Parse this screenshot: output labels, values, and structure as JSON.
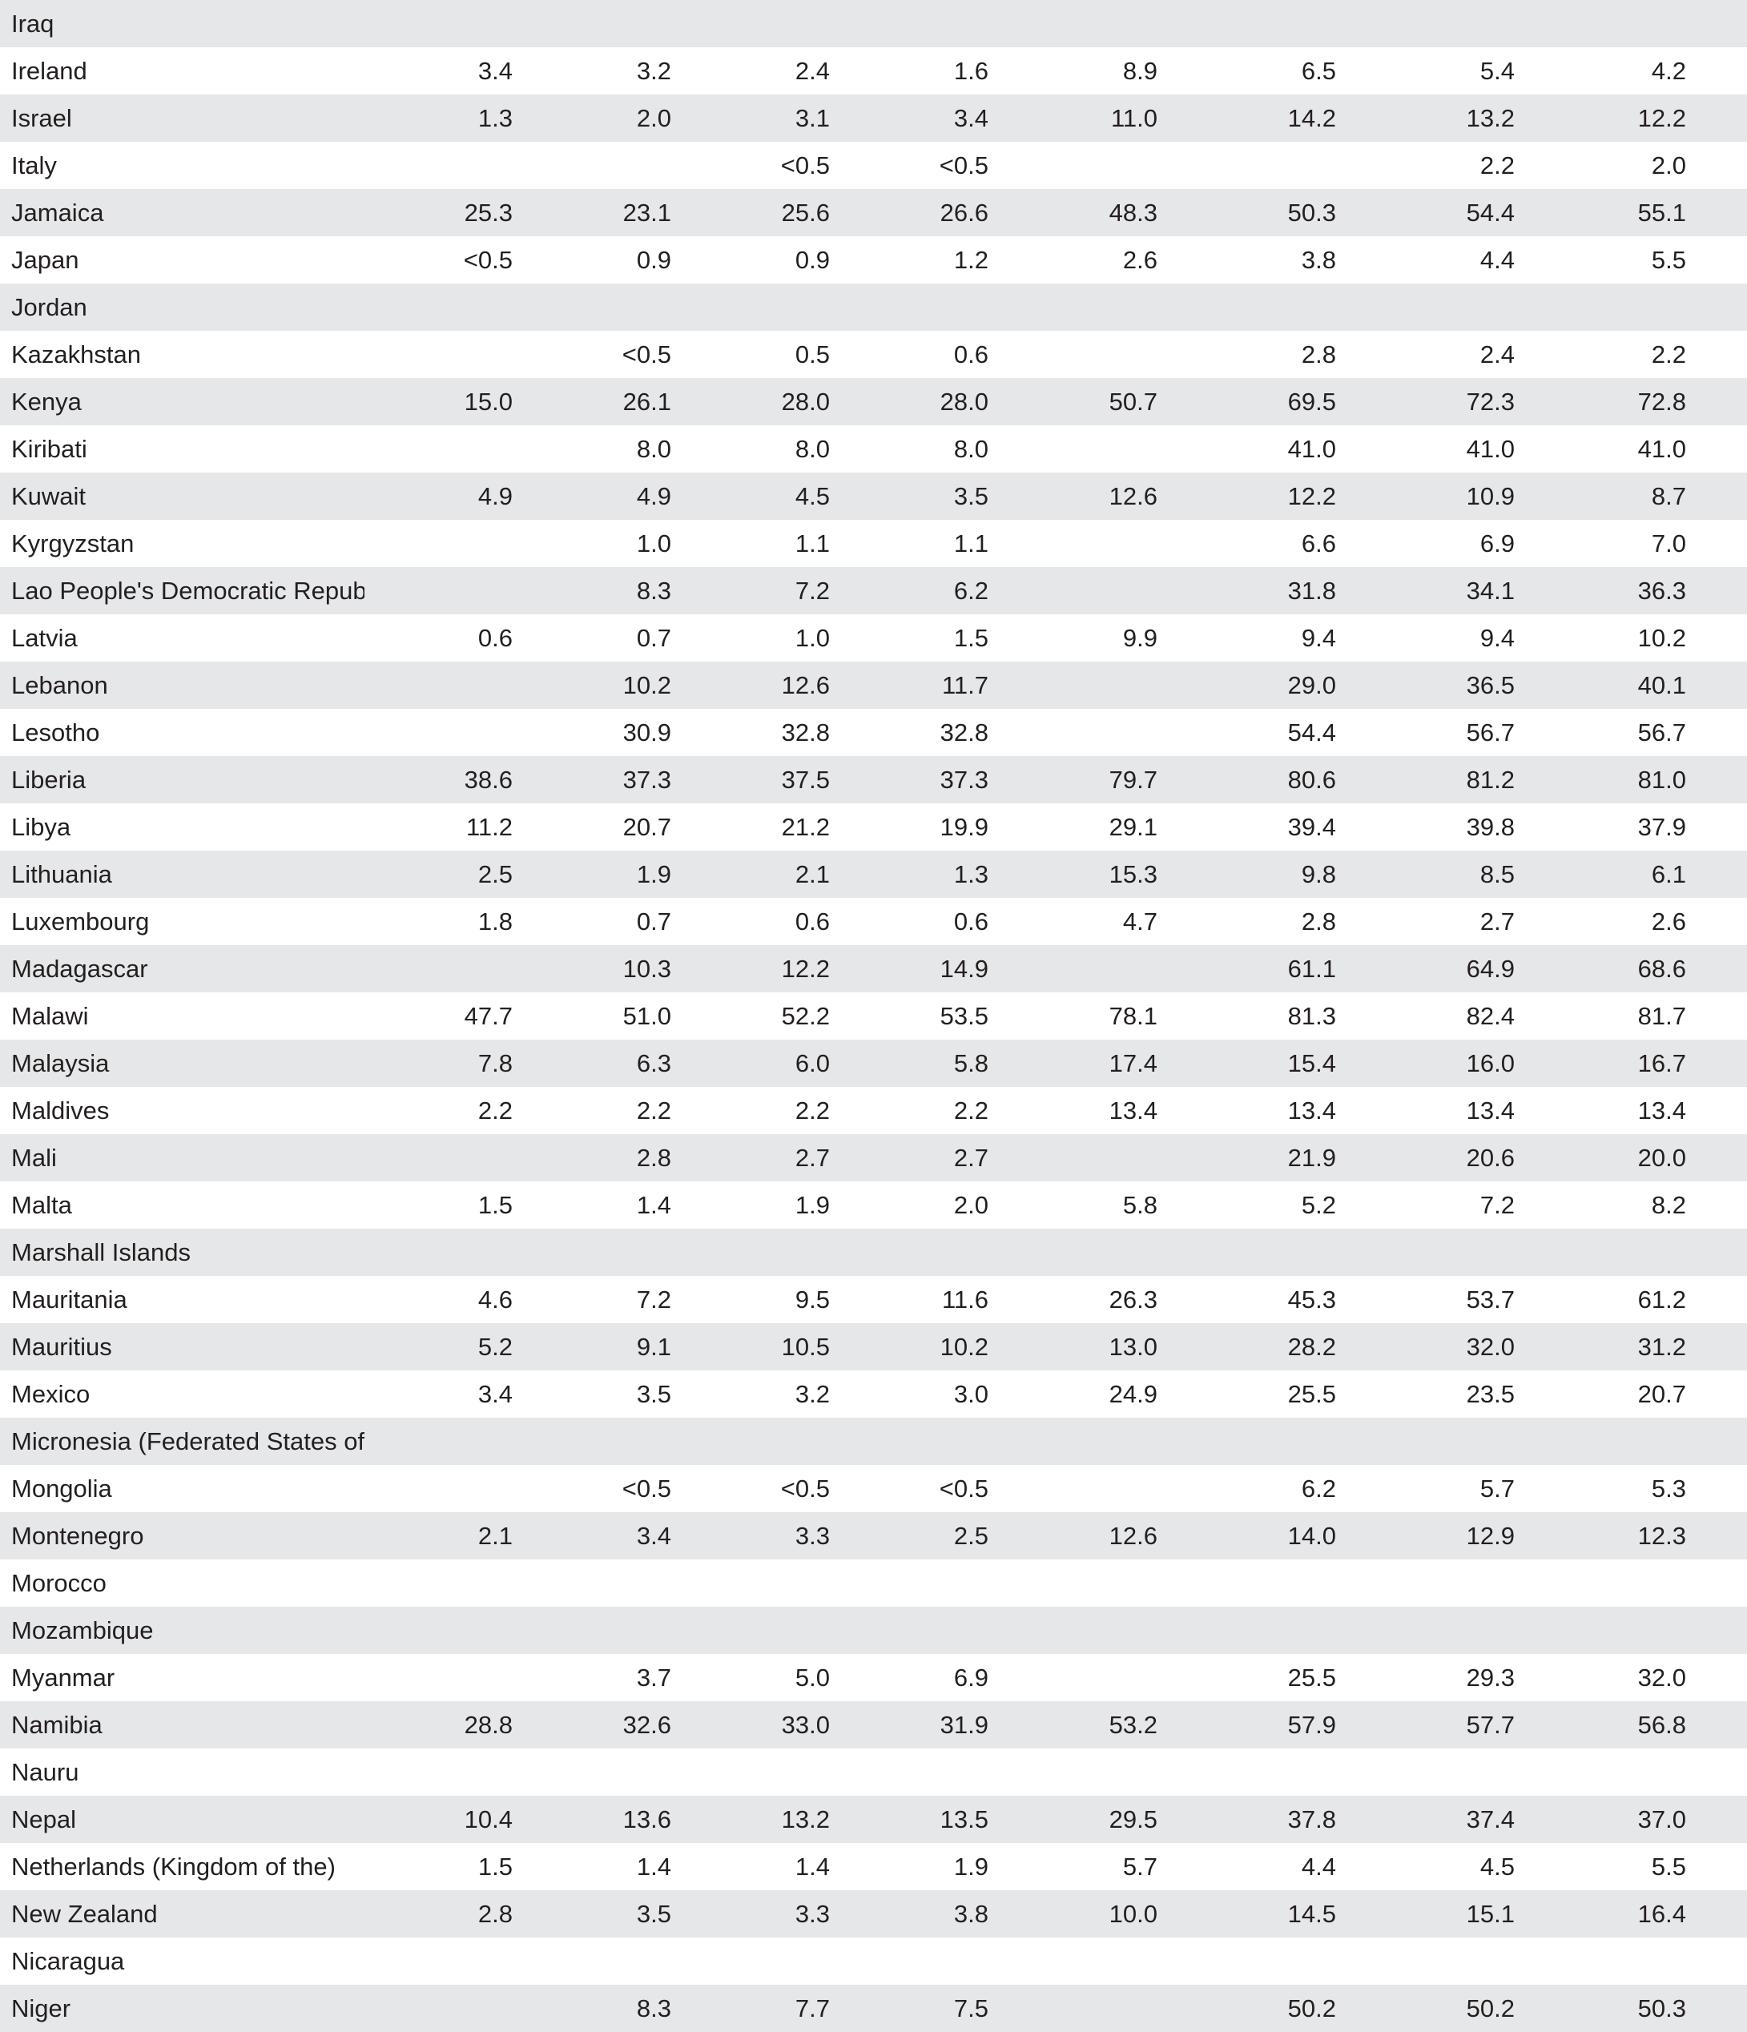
{
  "rows": [
    {
      "country": "Iraq",
      "values": [
        "",
        "",
        "",
        "",
        "",
        "",
        "",
        ""
      ]
    },
    {
      "country": "Ireland",
      "values": [
        "3.4",
        "3.2",
        "2.4",
        "1.6",
        "8.9",
        "6.5",
        "5.4",
        "4.2"
      ]
    },
    {
      "country": "Israel",
      "values": [
        "1.3",
        "2.0",
        "3.1",
        "3.4",
        "11.0",
        "14.2",
        "13.2",
        "12.2"
      ]
    },
    {
      "country": "Italy",
      "values": [
        "",
        "",
        "<0.5",
        "<0.5",
        "",
        "",
        "2.2",
        "2.0"
      ]
    },
    {
      "country": "Jamaica",
      "values": [
        "25.3",
        "23.1",
        "25.6",
        "26.6",
        "48.3",
        "50.3",
        "54.4",
        "55.1"
      ]
    },
    {
      "country": "Japan",
      "values": [
        "<0.5",
        "0.9",
        "0.9",
        "1.2",
        "2.6",
        "3.8",
        "4.4",
        "5.5"
      ]
    },
    {
      "country": "Jordan",
      "values": [
        "",
        "",
        "",
        "",
        "",
        "",
        "",
        ""
      ]
    },
    {
      "country": "Kazakhstan",
      "values": [
        "",
        "<0.5",
        "0.5",
        "0.6",
        "",
        "2.8",
        "2.4",
        "2.2"
      ]
    },
    {
      "country": "Kenya",
      "values": [
        "15.0",
        "26.1",
        "28.0",
        "28.0",
        "50.7",
        "69.5",
        "72.3",
        "72.8"
      ]
    },
    {
      "country": "Kiribati",
      "values": [
        "",
        "8.0",
        "8.0",
        "8.0",
        "",
        "41.0",
        "41.0",
        "41.0"
      ]
    },
    {
      "country": "Kuwait",
      "values": [
        "4.9",
        "4.9",
        "4.5",
        "3.5",
        "12.6",
        "12.2",
        "10.9",
        "8.7"
      ]
    },
    {
      "country": "Kyrgyzstan",
      "values": [
        "",
        "1.0",
        "1.1",
        "1.1",
        "",
        "6.6",
        "6.9",
        "7.0"
      ]
    },
    {
      "country": "Lao People's Democratic Republic",
      "values": [
        "",
        "8.3",
        "7.2",
        "6.2",
        "",
        "31.8",
        "34.1",
        "36.3"
      ]
    },
    {
      "country": "Latvia",
      "values": [
        "0.6",
        "0.7",
        "1.0",
        "1.5",
        "9.9",
        "9.4",
        "9.4",
        "10.2"
      ]
    },
    {
      "country": "Lebanon",
      "values": [
        "",
        "10.2",
        "12.6",
        "11.7",
        "",
        "29.0",
        "36.5",
        "40.1"
      ]
    },
    {
      "country": "Lesotho",
      "values": [
        "",
        "30.9",
        "32.8",
        "32.8",
        "",
        "54.4",
        "56.7",
        "56.7"
      ]
    },
    {
      "country": "Liberia",
      "values": [
        "38.6",
        "37.3",
        "37.5",
        "37.3",
        "79.7",
        "80.6",
        "81.2",
        "81.0"
      ]
    },
    {
      "country": "Libya",
      "values": [
        "11.2",
        "20.7",
        "21.2",
        "19.9",
        "29.1",
        "39.4",
        "39.8",
        "37.9"
      ]
    },
    {
      "country": "Lithuania",
      "values": [
        "2.5",
        "1.9",
        "2.1",
        "1.3",
        "15.3",
        "9.8",
        "8.5",
        "6.1"
      ]
    },
    {
      "country": "Luxembourg",
      "values": [
        "1.8",
        "0.7",
        "0.6",
        "0.6",
        "4.7",
        "2.8",
        "2.7",
        "2.6"
      ]
    },
    {
      "country": "Madagascar",
      "values": [
        "",
        "10.3",
        "12.2",
        "14.9",
        "",
        "61.1",
        "64.9",
        "68.6"
      ]
    },
    {
      "country": "Malawi",
      "values": [
        "47.7",
        "51.0",
        "52.2",
        "53.5",
        "78.1",
        "81.3",
        "82.4",
        "81.7"
      ]
    },
    {
      "country": "Malaysia",
      "values": [
        "7.8",
        "6.3",
        "6.0",
        "5.8",
        "17.4",
        "15.4",
        "16.0",
        "16.7"
      ]
    },
    {
      "country": "Maldives",
      "values": [
        "2.2",
        "2.2",
        "2.2",
        "2.2",
        "13.4",
        "13.4",
        "13.4",
        "13.4"
      ]
    },
    {
      "country": "Mali",
      "values": [
        "",
        "2.8",
        "2.7",
        "2.7",
        "",
        "21.9",
        "20.6",
        "20.0"
      ]
    },
    {
      "country": "Malta",
      "values": [
        "1.5",
        "1.4",
        "1.9",
        "2.0",
        "5.8",
        "5.2",
        "7.2",
        "8.2"
      ]
    },
    {
      "country": "Marshall Islands",
      "values": [
        "",
        "",
        "",
        "",
        "",
        "",
        "",
        ""
      ]
    },
    {
      "country": "Mauritania",
      "values": [
        "4.6",
        "7.2",
        "9.5",
        "11.6",
        "26.3",
        "45.3",
        "53.7",
        "61.2"
      ]
    },
    {
      "country": "Mauritius",
      "values": [
        "5.2",
        "9.1",
        "10.5",
        "10.2",
        "13.0",
        "28.2",
        "32.0",
        "31.2"
      ]
    },
    {
      "country": "Mexico",
      "values": [
        "3.4",
        "3.5",
        "3.2",
        "3.0",
        "24.9",
        "25.5",
        "23.5",
        "20.7"
      ]
    },
    {
      "country": "Micronesia (Federated States of)",
      "values": [
        "",
        "",
        "",
        "",
        "",
        "",
        "",
        ""
      ]
    },
    {
      "country": "Mongolia",
      "values": [
        "",
        "<0.5",
        "<0.5",
        "<0.5",
        "",
        "6.2",
        "5.7",
        "5.3"
      ]
    },
    {
      "country": "Montenegro",
      "values": [
        "2.1",
        "3.4",
        "3.3",
        "2.5",
        "12.6",
        "14.0",
        "12.9",
        "12.3"
      ]
    },
    {
      "country": "Morocco",
      "values": [
        "",
        "",
        "",
        "",
        "",
        "",
        "",
        ""
      ]
    },
    {
      "country": "Mozambique",
      "values": [
        "",
        "",
        "",
        "",
        "",
        "",
        "",
        ""
      ]
    },
    {
      "country": "Myanmar",
      "values": [
        "",
        "3.7",
        "5.0",
        "6.9",
        "",
        "25.5",
        "29.3",
        "32.0"
      ]
    },
    {
      "country": "Namibia",
      "values": [
        "28.8",
        "32.6",
        "33.0",
        "31.9",
        "53.2",
        "57.9",
        "57.7",
        "56.8"
      ]
    },
    {
      "country": "Nauru",
      "values": [
        "",
        "",
        "",
        "",
        "",
        "",
        "",
        ""
      ]
    },
    {
      "country": "Nepal",
      "values": [
        "10.4",
        "13.6",
        "13.2",
        "13.5",
        "29.5",
        "37.8",
        "37.4",
        "37.0"
      ]
    },
    {
      "country": "Netherlands (Kingdom of the)",
      "values": [
        "1.5",
        "1.4",
        "1.4",
        "1.9",
        "5.7",
        "4.4",
        "4.5",
        "5.5"
      ]
    },
    {
      "country": "New Zealand",
      "values": [
        "2.8",
        "3.5",
        "3.3",
        "3.8",
        "10.0",
        "14.5",
        "15.1",
        "16.4"
      ]
    },
    {
      "country": "Nicaragua",
      "values": [
        "",
        "",
        "",
        "",
        "",
        "",
        "",
        ""
      ]
    },
    {
      "country": "Niger",
      "values": [
        "",
        "8.3",
        "7.7",
        "7.5",
        "",
        "50.2",
        "50.2",
        "50.3"
      ]
    }
  ]
}
